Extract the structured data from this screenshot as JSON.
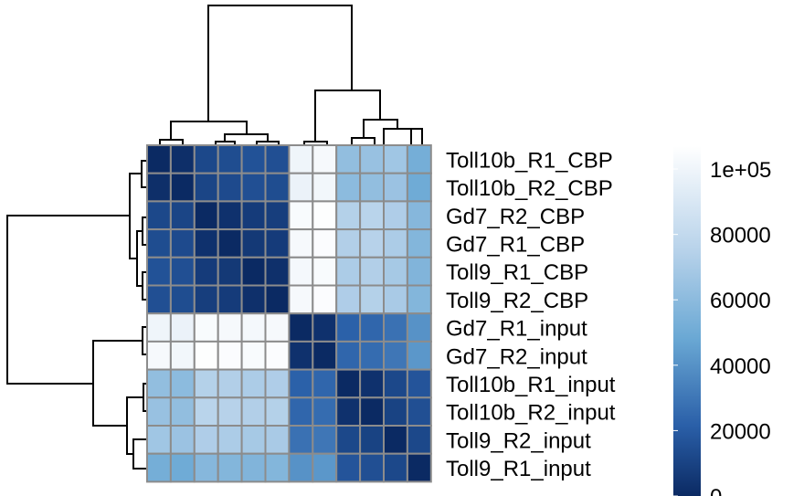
{
  "chart_data": {
    "type": "heatmap",
    "title": "",
    "row_labels": [
      "Toll10b_R1_CBP",
      "Toll10b_R2_CBP",
      "Gd7_R2_CBP",
      "Gd7_R1_CBP",
      "Toll9_R1_CBP",
      "Toll9_R2_CBP",
      "Gd7_R1_input",
      "Gd7_R2_input",
      "Toll10b_R1_input",
      "Toll10b_R2_input",
      "Toll9_R2_input",
      "Toll9_R1_input"
    ],
    "column_labels_shown": false,
    "values": [
      [
        0,
        2000,
        12000,
        14000,
        16000,
        15000,
        100000,
        103000,
        62000,
        64000,
        67000,
        52000
      ],
      [
        2000,
        0,
        11000,
        13000,
        15000,
        14000,
        98000,
        101000,
        60000,
        62000,
        65000,
        50000
      ],
      [
        12000,
        11000,
        0,
        3000,
        7000,
        8000,
        104000,
        106000,
        74000,
        76000,
        72000,
        58000
      ],
      [
        14000,
        13000,
        3000,
        0,
        6000,
        7000,
        103000,
        105000,
        73000,
        75000,
        71000,
        57000
      ],
      [
        16000,
        15000,
        7000,
        6000,
        0,
        2500,
        102000,
        104000,
        71000,
        73000,
        69000,
        56000
      ],
      [
        15000,
        14000,
        8000,
        7000,
        2500,
        0,
        103000,
        105000,
        72000,
        74000,
        70000,
        57000
      ],
      [
        100000,
        98000,
        104000,
        103000,
        102000,
        103000,
        0,
        3000,
        22000,
        24000,
        28000,
        40000
      ],
      [
        103000,
        101000,
        106000,
        105000,
        104000,
        105000,
        3000,
        0,
        24000,
        26000,
        30000,
        42000
      ],
      [
        62000,
        60000,
        74000,
        73000,
        71000,
        72000,
        22000,
        24000,
        0,
        3000,
        12000,
        17000
      ],
      [
        64000,
        62000,
        76000,
        75000,
        73000,
        74000,
        24000,
        26000,
        3000,
        0,
        10000,
        15000
      ],
      [
        67000,
        65000,
        72000,
        71000,
        69000,
        70000,
        28000,
        30000,
        12000,
        10000,
        0,
        12000
      ],
      [
        52000,
        50000,
        58000,
        57000,
        56000,
        57000,
        40000,
        42000,
        17000,
        15000,
        12000,
        0
      ]
    ],
    "color_scale": {
      "min": 0,
      "max": 107000,
      "stops": [
        "#0b2a63",
        "#2a5fa8",
        "#6aa8d4",
        "#b7d2ea",
        "#ffffff"
      ],
      "legend_ticks": [
        "0",
        "20000",
        "40000",
        "60000",
        "80000",
        "1e+05"
      ]
    },
    "dendrograms": [
      "top",
      "left"
    ],
    "cell_border_color": "#8c8c8c",
    "grid": false
  }
}
